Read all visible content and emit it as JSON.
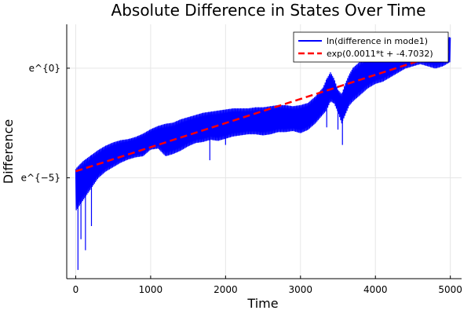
{
  "chart_data": {
    "type": "line",
    "title": "Absolute Difference in States Over Time",
    "xlabel": "Time",
    "ylabel": "Difference",
    "xlim": [
      -120,
      5150
    ],
    "ylim": [
      -9.6,
      2.0
    ],
    "x_ticks": [
      {
        "value": 0,
        "label": "0"
      },
      {
        "value": 1000,
        "label": "1000"
      },
      {
        "value": 2000,
        "label": "2000"
      },
      {
        "value": 3000,
        "label": "3000"
      },
      {
        "value": 4000,
        "label": "4000"
      },
      {
        "value": 5000,
        "label": "5000"
      }
    ],
    "y_ticks": [
      {
        "value": 0,
        "label": "e^{0}"
      },
      {
        "value": -5,
        "label": "e^{−5}"
      }
    ],
    "grid": true,
    "legend_position": "top-right",
    "colors": {
      "series1": "#0000ff",
      "series2": "#ff0000"
    },
    "series": [
      {
        "name": "ln(difference in mode1)",
        "style": "oscillating-line",
        "x": [
          0,
          100,
          200,
          300,
          400,
          500,
          600,
          700,
          800,
          900,
          1000,
          1100,
          1200,
          1300,
          1400,
          1500,
          1600,
          1700,
          1800,
          1900,
          2000,
          2100,
          2200,
          2300,
          2400,
          2500,
          2600,
          2700,
          2800,
          2900,
          3000,
          3100,
          3200,
          3300,
          3350,
          3400,
          3450,
          3500,
          3550,
          3600,
          3650,
          3700,
          3800,
          3900,
          4000,
          4100,
          4200,
          4300,
          4400,
          4500,
          4600,
          4700,
          4800,
          4900,
          5000
        ],
        "upper": [
          -4.6,
          -4.25,
          -4.0,
          -3.75,
          -3.55,
          -3.4,
          -3.3,
          -3.25,
          -3.15,
          -3.0,
          -2.8,
          -2.65,
          -2.55,
          -2.5,
          -2.35,
          -2.25,
          -2.15,
          -2.05,
          -2.0,
          -1.95,
          -1.9,
          -1.85,
          -1.85,
          -1.85,
          -1.8,
          -1.8,
          -1.75,
          -1.7,
          -1.7,
          -1.75,
          -1.7,
          -1.6,
          -1.3,
          -0.9,
          -0.5,
          -0.2,
          -0.5,
          -1.0,
          -1.2,
          -0.7,
          -0.3,
          0.0,
          0.3,
          0.5,
          0.6,
          0.8,
          0.7,
          0.9,
          1.1,
          1.3,
          1.5,
          1.2,
          1.3,
          1.4,
          1.4
        ],
        "lower": [
          -6.5,
          -6.0,
          -5.5,
          -5.0,
          -4.7,
          -4.5,
          -4.3,
          -4.15,
          -4.05,
          -4.0,
          -3.7,
          -3.65,
          -4.0,
          -3.9,
          -3.75,
          -3.55,
          -3.4,
          -3.35,
          -3.25,
          -3.3,
          -3.2,
          -3.1,
          -3.05,
          -3.0,
          -3.0,
          -3.05,
          -3.0,
          -2.9,
          -2.9,
          -2.85,
          -2.95,
          -2.8,
          -2.5,
          -2.1,
          -1.9,
          -1.5,
          -1.6,
          -2.0,
          -2.5,
          -2.1,
          -1.7,
          -1.5,
          -1.2,
          -0.9,
          -0.7,
          -0.6,
          -0.4,
          -0.2,
          0.0,
          0.1,
          0.2,
          0.1,
          0.0,
          0.1,
          0.3
        ],
        "spikes": [
          {
            "x": 30,
            "y": -9.2
          },
          {
            "x": 70,
            "y": -7.8
          },
          {
            "x": 130,
            "y": -8.3
          },
          {
            "x": 210,
            "y": -7.2
          },
          {
            "x": 1790,
            "y": -4.2
          },
          {
            "x": 2000,
            "y": -3.5
          },
          {
            "x": 3350,
            "y": -2.7
          },
          {
            "x": 3500,
            "y": -2.8
          },
          {
            "x": 3560,
            "y": -3.5
          }
        ]
      },
      {
        "name": "exp(0.0011*t + -4.7032)",
        "style": "dashed",
        "x": [
          0,
          5000
        ],
        "y": [
          -4.7032,
          0.7968
        ]
      }
    ]
  }
}
